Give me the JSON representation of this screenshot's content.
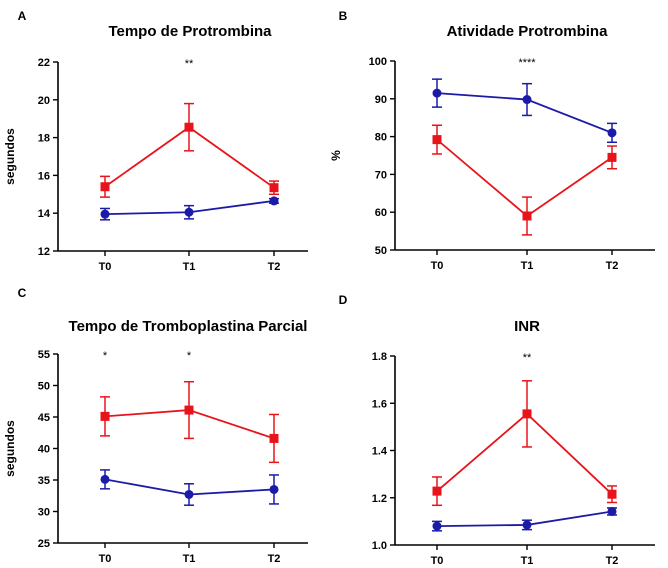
{
  "chart_data": [
    {
      "panel": "A",
      "type": "line",
      "title": "Tempo de Protrombina",
      "xlabel": "",
      "ylabel": "segundos",
      "categories": [
        "T0",
        "T1",
        "T2"
      ],
      "ylim": [
        12,
        22
      ],
      "yticks": [
        12,
        14,
        16,
        18,
        20,
        22
      ],
      "ytick_labels": [
        "12",
        "14",
        "16",
        "18",
        "20",
        "22"
      ],
      "grid": false,
      "series": [
        {
          "color": "#e8141c",
          "marker": "square",
          "values": [
            15.4,
            18.55,
            15.35
          ],
          "errors": [
            0.55,
            1.25,
            0.35
          ]
        },
        {
          "color": "#1b1ba8",
          "marker": "circle",
          "values": [
            13.95,
            14.05,
            14.65
          ],
          "errors": [
            0.3,
            0.35,
            0.12
          ]
        }
      ],
      "annotations": [
        {
          "category": "T1",
          "text": "**"
        }
      ]
    },
    {
      "panel": "B",
      "type": "line",
      "title": "Atividade Protrombina",
      "xlabel": "",
      "ylabel": "%",
      "categories": [
        "T0",
        "T1",
        "T2"
      ],
      "ylim": [
        50,
        100
      ],
      "yticks": [
        50,
        60,
        70,
        80,
        90,
        100
      ],
      "ytick_labels": [
        "50",
        "60",
        "70",
        "80",
        "90",
        "100"
      ],
      "grid": false,
      "series": [
        {
          "color": "#e8141c",
          "marker": "square",
          "values": [
            79.2,
            59,
            74.5
          ],
          "errors": [
            3.8,
            5,
            3
          ]
        },
        {
          "color": "#1b1ba8",
          "marker": "circle",
          "values": [
            91.5,
            89.8,
            81
          ],
          "errors": [
            3.7,
            4.2,
            2.5
          ]
        }
      ],
      "annotations": [
        {
          "category": "T1",
          "text": "****"
        }
      ]
    },
    {
      "panel": "C",
      "type": "line",
      "title": "Tempo de Tromboplastina Parcial",
      "xlabel": "",
      "ylabel": "segundos",
      "categories": [
        "T0",
        "T1",
        "T2"
      ],
      "ylim": [
        25,
        55
      ],
      "yticks": [
        25,
        30,
        35,
        40,
        45,
        50,
        55
      ],
      "ytick_labels": [
        "25",
        "30",
        "35",
        "40",
        "45",
        "50",
        "55"
      ],
      "grid": false,
      "series": [
        {
          "color": "#e8141c",
          "marker": "square",
          "values": [
            45.1,
            46.1,
            41.6
          ],
          "errors": [
            3.1,
            4.5,
            3.8
          ]
        },
        {
          "color": "#1b1ba8",
          "marker": "circle",
          "values": [
            35.1,
            32.7,
            33.5
          ],
          "errors": [
            1.5,
            1.7,
            2.3
          ]
        }
      ],
      "annotations": [
        {
          "category": "T0",
          "text": "*"
        },
        {
          "category": "T1",
          "text": "*"
        }
      ]
    },
    {
      "panel": "D",
      "type": "line",
      "title": "INR",
      "xlabel": "",
      "ylabel": "",
      "categories": [
        "T0",
        "T1",
        "T2"
      ],
      "ylim": [
        1.0,
        1.8
      ],
      "yticks": [
        1.0,
        1.2,
        1.4,
        1.6,
        1.8
      ],
      "ytick_labels": [
        "1.0",
        "1.2",
        "1.4",
        "1.6",
        "1.8"
      ],
      "grid": false,
      "series": [
        {
          "color": "#e8141c",
          "marker": "square",
          "values": [
            1.228,
            1.555,
            1.215
          ],
          "errors": [
            0.06,
            0.14,
            0.035
          ]
        },
        {
          "color": "#1b1ba8",
          "marker": "circle",
          "values": [
            1.08,
            1.085,
            1.142
          ],
          "errors": [
            0.02,
            0.02,
            0.015
          ]
        }
      ],
      "annotations": [
        {
          "category": "T1",
          "text": "**"
        }
      ]
    }
  ]
}
